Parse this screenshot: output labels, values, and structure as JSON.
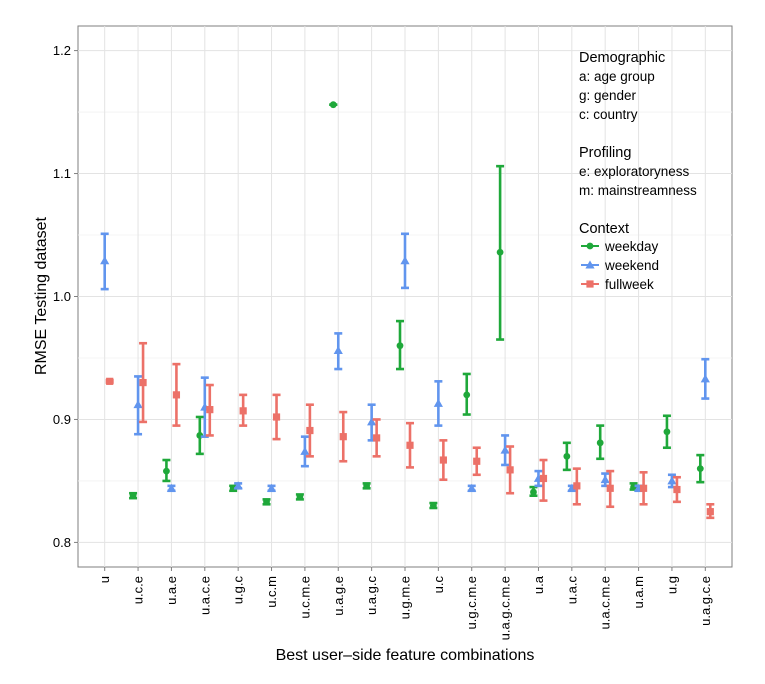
{
  "chart_data": {
    "type": "scatter",
    "title": "",
    "xlabel": "Best user–side feature combinations",
    "ylabel": "RMSE Testing dataset",
    "ylim": [
      0.78,
      1.22
    ],
    "yticks": [
      0.8,
      0.9,
      1.0,
      1.1,
      1.2
    ],
    "grid": true,
    "legend_placement": "top-right",
    "categories": [
      "u",
      "u.c.e",
      "u.a.e",
      "u.a.c.e",
      "u.g.c",
      "u.c.m",
      "u.c.m.e",
      "u.a.g.e",
      "u.a.g.c",
      "u.g.m.e",
      "u.c",
      "u.g.c.m.e",
      "u.a.g.c.m.e",
      "u.a",
      "u.a.c",
      "u.a.c.m.e",
      "u.a.m",
      "u.g",
      "u.a.g.c.e"
    ],
    "series": [
      {
        "name": "weekday",
        "color": "#1fa83a",
        "marker": "circle",
        "y": [
          null,
          0.838,
          0.858,
          0.887,
          0.844,
          0.833,
          0.837,
          1.156,
          0.846,
          0.96,
          0.83,
          0.92,
          1.036,
          0.841,
          0.87,
          0.881,
          0.845,
          0.89,
          0.86
        ],
        "ymin": [
          null,
          0.836,
          0.85,
          0.872,
          0.842,
          0.831,
          0.835,
          1.156,
          0.844,
          0.941,
          0.828,
          0.904,
          0.965,
          0.838,
          0.859,
          0.868,
          0.843,
          0.877,
          0.849
        ],
        "ymax": [
          null,
          0.84,
          0.867,
          0.902,
          0.846,
          0.835,
          0.839,
          1.156,
          0.848,
          0.98,
          0.832,
          0.937,
          1.106,
          0.845,
          0.881,
          0.895,
          0.848,
          0.903,
          0.871
        ]
      },
      {
        "name": "weekend",
        "color": "#6195ee",
        "marker": "triangle",
        "y": [
          1.029,
          0.912,
          0.844,
          0.91,
          0.846,
          0.844,
          0.874,
          0.956,
          0.898,
          1.029,
          0.913,
          0.844,
          0.875,
          0.852,
          0.844,
          0.851,
          0.844,
          0.85,
          0.933
        ],
        "ymin": [
          1.006,
          0.888,
          0.842,
          0.886,
          0.844,
          0.842,
          0.862,
          0.941,
          0.883,
          1.007,
          0.895,
          0.842,
          0.863,
          0.846,
          0.842,
          0.846,
          0.842,
          0.845,
          0.917
        ],
        "ymax": [
          1.051,
          0.935,
          0.846,
          0.934,
          0.848,
          0.846,
          0.886,
          0.97,
          0.912,
          1.051,
          0.931,
          0.846,
          0.887,
          0.858,
          0.846,
          0.856,
          0.846,
          0.855,
          0.949
        ]
      },
      {
        "name": "fullweek",
        "color": "#ec7168",
        "marker": "square",
        "y": [
          0.931,
          0.93,
          0.92,
          0.908,
          0.907,
          0.902,
          0.891,
          0.886,
          0.885,
          0.879,
          0.867,
          0.866,
          0.859,
          0.852,
          0.846,
          0.844,
          0.844,
          0.843,
          0.825
        ],
        "ymin": [
          0.93,
          0.898,
          0.895,
          0.887,
          0.895,
          0.884,
          0.87,
          0.866,
          0.87,
          0.861,
          0.851,
          0.855,
          0.84,
          0.834,
          0.831,
          0.829,
          0.831,
          0.833,
          0.82
        ],
        "ymax": [
          0.932,
          0.962,
          0.945,
          0.928,
          0.92,
          0.92,
          0.912,
          0.906,
          0.9,
          0.897,
          0.883,
          0.877,
          0.878,
          0.867,
          0.86,
          0.858,
          0.857,
          0.853,
          0.831
        ]
      }
    ],
    "legend": {
      "demographic_title": "Demographic",
      "demographic_items": [
        "a: age group",
        "g: gender",
        "c: country"
      ],
      "profiling_title": "Profiling",
      "profiling_items": [
        "e: exploratoryness",
        "m: mainstreamness"
      ],
      "context_title": "Context",
      "context_items": [
        "weekday",
        "weekend",
        "fullweek"
      ]
    }
  }
}
